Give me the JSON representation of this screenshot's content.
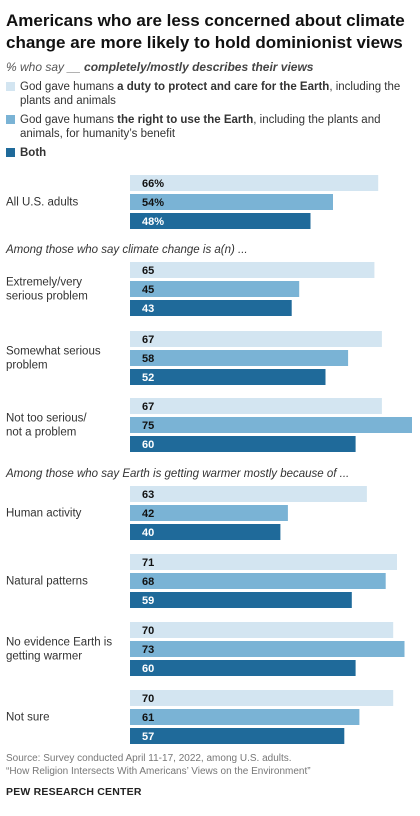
{
  "title": "Americans who are less concerned about climate change are more likely to hold dominionist views",
  "subtitle_prefix": "% who say __ ",
  "subtitle_emphasis": "completely/mostly describes their views",
  "colors": {
    "duty": "#d3e5f1",
    "right": "#7ab3d5",
    "both": "#1f6a9a",
    "value_text_light": "#111111",
    "value_text_dark": "#ffffff"
  },
  "legend": [
    {
      "pre": "God gave humans ",
      "bold": "a duty to protect and care for the Earth",
      "post": ", including the plants and animals"
    },
    {
      "pre": "God gave humans ",
      "bold": "the right to use the Earth",
      "post": ", including the plants and animals, for humanity’s benefit"
    },
    {
      "pre": "",
      "bold": "Both",
      "post": ""
    }
  ],
  "chart_data": {
    "type": "bar",
    "orientation": "horizontal",
    "series": [
      {
        "name": "God gave humans a duty to protect and care for the Earth, including the plants and animals"
      },
      {
        "name": "God gave humans the right to use the Earth, including the plants and animals, for humanity’s benefit"
      },
      {
        "name": "Both"
      }
    ],
    "groups": [
      {
        "section": "",
        "label": [
          "All U.S. adults"
        ],
        "values": [
          66,
          54,
          48
        ],
        "display": [
          "66%",
          "54%",
          "48%"
        ]
      },
      {
        "section": "Among those who say climate change is a(n) ...",
        "label": [
          "Extremely/very",
          "serious problem"
        ],
        "values": [
          65,
          45,
          43
        ],
        "display": [
          "65",
          "45",
          "43"
        ]
      },
      {
        "section": "",
        "label": [
          "Somewhat serious",
          "problem"
        ],
        "values": [
          67,
          58,
          52
        ],
        "display": [
          "67",
          "58",
          "52"
        ]
      },
      {
        "section": "",
        "label": [
          "Not too serious/",
          "not a problem"
        ],
        "values": [
          67,
          75,
          60
        ],
        "display": [
          "67",
          "75",
          "60"
        ]
      },
      {
        "section": "Among those who say Earth is getting warmer mostly because of ...",
        "label": [
          "Human activity"
        ],
        "values": [
          63,
          42,
          40
        ],
        "display": [
          "63",
          "42",
          "40"
        ]
      },
      {
        "section": "",
        "label": [
          "Natural patterns"
        ],
        "values": [
          71,
          68,
          59
        ],
        "display": [
          "71",
          "68",
          "59"
        ]
      },
      {
        "section": "",
        "label": [
          "No evidence Earth is",
          "getting warmer"
        ],
        "values": [
          70,
          73,
          60
        ],
        "display": [
          "70",
          "73",
          "60"
        ]
      },
      {
        "section": "",
        "label": [
          "Not sure"
        ],
        "values": [
          70,
          61,
          57
        ],
        "display": [
          "70",
          "61",
          "57"
        ]
      }
    ],
    "xlim": [
      0,
      75
    ]
  },
  "source": "Source: Survey conducted April 11-17, 2022, among U.S. adults.",
  "report": "“How Religion Intersects With Americans’ Views on the Environment”",
  "brand": "PEW RESEARCH CENTER"
}
